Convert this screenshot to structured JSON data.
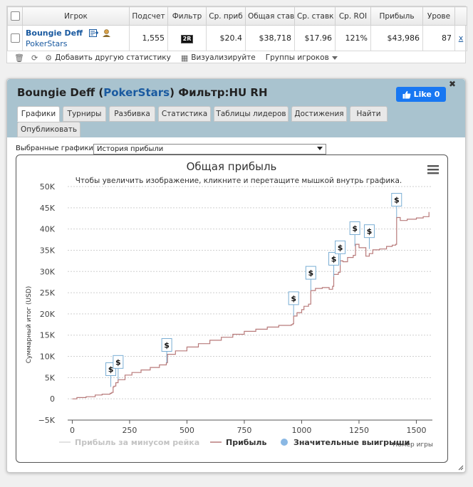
{
  "table": {
    "headers": [
      "Игрок",
      "Подсчет",
      "Фильтр",
      "Ср. приб",
      "Общая став",
      "Ср. ставк",
      "Ср. ROI",
      "Прибыль",
      "Урове"
    ],
    "row": {
      "player_name": "Boungie Deff",
      "site": "PokerStars",
      "count": "1,555",
      "filter_badge": "2R",
      "avg_profit": "$20.4",
      "total_stake": "$38,718",
      "avg_stake": "$17.96",
      "avg_roi": "121%",
      "profit": "$43,986",
      "level": "87",
      "remove": "x"
    }
  },
  "toolbar": {
    "add_stats": "Добавить другую статистику",
    "visualize": "Визуализируйте",
    "player_groups": "Группы игроков"
  },
  "panel": {
    "title_name": "Boungie Deff",
    "title_site": "PokerStars",
    "title_filter": "Фильтр:HU RH",
    "like": "Like 0",
    "close": "✖",
    "tabs": [
      "Графики",
      "Турниры",
      "Разбивка",
      "Статистика",
      "Таблицы лидеров",
      "Достижения",
      "Найти",
      "Опубликовать"
    ],
    "active_tab": 0,
    "graph_select_label": "Выбранные графики:",
    "graph_select_value": "История прибыли"
  },
  "chart_data": {
    "type": "line",
    "title": "Общая прибыль",
    "subtitle": "Чтобы увеличить изображение, кликните и перетащите мышкой внутрь графика.",
    "ylabel": "Суммарный итог (USD)",
    "xlabel": "Номер игры",
    "ylim": [
      -5000,
      50000
    ],
    "yticks": [
      -5000,
      0,
      5000,
      10000,
      15000,
      20000,
      25000,
      30000,
      35000,
      40000,
      45000,
      50000
    ],
    "ytick_labels": [
      "−5K",
      "0",
      "5K",
      "10K",
      "15K",
      "20K",
      "25K",
      "30K",
      "35K",
      "40K",
      "45K",
      "50K"
    ],
    "xlim": [
      -20,
      1570
    ],
    "xticks": [
      0,
      250,
      500,
      750,
      1000,
      1250,
      1500
    ],
    "grid": true,
    "legend": [
      "Прибыль за минусом рейка",
      "Прибыль",
      "Значительные выигрыши"
    ],
    "legend_position": "bottom",
    "series": [
      {
        "name": "Прибыль",
        "color": "#b87a7a",
        "points": [
          [
            0,
            0
          ],
          [
            20,
            300
          ],
          [
            60,
            500
          ],
          [
            100,
            900
          ],
          [
            130,
            1100
          ],
          [
            165,
            1300
          ],
          [
            172,
            1500
          ],
          [
            178,
            2800
          ],
          [
            182,
            3000
          ],
          [
            190,
            3800
          ],
          [
            200,
            4500
          ],
          [
            230,
            5600
          ],
          [
            260,
            6200
          ],
          [
            300,
            6800
          ],
          [
            340,
            7400
          ],
          [
            380,
            8000
          ],
          [
            410,
            8500
          ],
          [
            415,
            10500
          ],
          [
            450,
            11300
          ],
          [
            500,
            12200
          ],
          [
            550,
            13000
          ],
          [
            600,
            13800
          ],
          [
            650,
            14500
          ],
          [
            700,
            15200
          ],
          [
            750,
            15900
          ],
          [
            800,
            16400
          ],
          [
            850,
            16900
          ],
          [
            900,
            17300
          ],
          [
            955,
            17500
          ],
          [
            962,
            17700
          ],
          [
            965,
            19500
          ],
          [
            980,
            20300
          ],
          [
            1000,
            21000
          ],
          [
            1010,
            21800
          ],
          [
            1030,
            22300
          ],
          [
            1040,
            25500
          ],
          [
            1060,
            26000
          ],
          [
            1090,
            26200
          ],
          [
            1120,
            25800
          ],
          [
            1135,
            26500
          ],
          [
            1140,
            29300
          ],
          [
            1160,
            29800
          ],
          [
            1168,
            32500
          ],
          [
            1180,
            32300
          ],
          [
            1200,
            33300
          ],
          [
            1225,
            33800
          ],
          [
            1235,
            36400
          ],
          [
            1250,
            35600
          ],
          [
            1280,
            33600
          ],
          [
            1295,
            34200
          ],
          [
            1310,
            35100
          ],
          [
            1340,
            35300
          ],
          [
            1370,
            35900
          ],
          [
            1395,
            36200
          ],
          [
            1410,
            36400
          ],
          [
            1414,
            42700
          ],
          [
            1430,
            42000
          ],
          [
            1460,
            42300
          ],
          [
            1500,
            42600
          ],
          [
            1530,
            42900
          ],
          [
            1555,
            44000
          ]
        ]
      }
    ],
    "big_wins": [
      {
        "x": 168,
        "y": 2800,
        "label": "$"
      },
      {
        "x": 200,
        "y": 4500,
        "label": "$"
      },
      {
        "x": 412,
        "y": 8500,
        "label": "$"
      },
      {
        "x": 965,
        "y": 19500,
        "label": "$"
      },
      {
        "x": 1040,
        "y": 25500,
        "label": "$"
      },
      {
        "x": 1140,
        "y": 28800,
        "label": "$"
      },
      {
        "x": 1168,
        "y": 31500,
        "label": "$"
      },
      {
        "x": 1232,
        "y": 36000,
        "label": "$"
      },
      {
        "x": 1295,
        "y": 35300,
        "label": "$"
      },
      {
        "x": 1414,
        "y": 42700,
        "label": "$"
      }
    ]
  }
}
